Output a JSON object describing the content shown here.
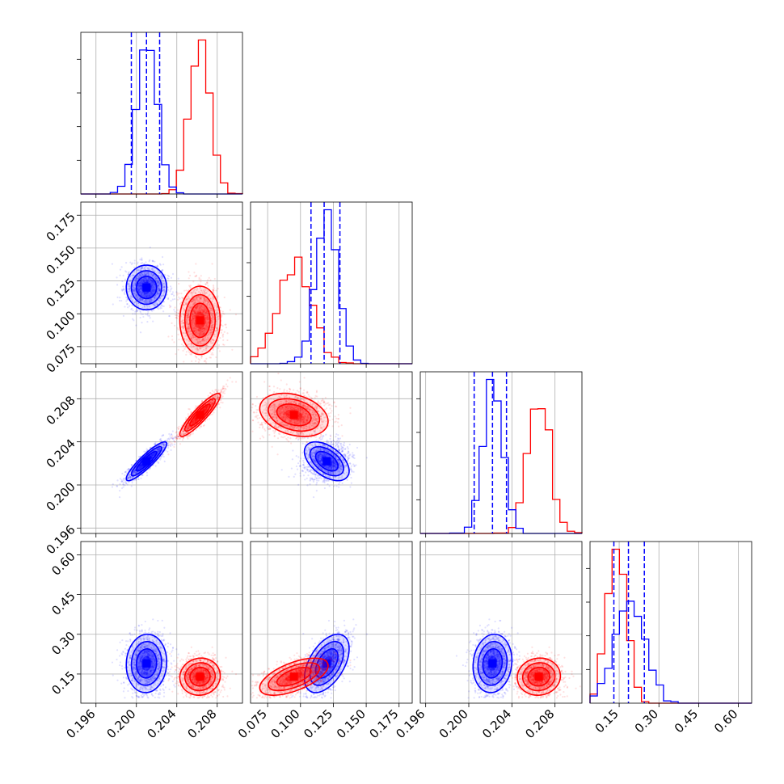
{
  "chart_data": {
    "type": "corner",
    "layout": "4x4 lower-triangular corner plot",
    "grid": true,
    "series": [
      {
        "name": "",
        "color": "#0000ff"
      },
      {
        "name": "",
        "color": "#ff0000"
      }
    ],
    "parameters": [
      {
        "range": [
          0.1945,
          0.2105
        ],
        "ticks": [
          0.196,
          0.2,
          0.204,
          0.208
        ],
        "tick_labels": [
          "0.196",
          "0.200",
          "0.204",
          "0.208"
        ]
      },
      {
        "range": [
          0.062,
          0.185
        ],
        "ticks": [
          0.075,
          0.1,
          0.125,
          0.15,
          0.175
        ],
        "tick_labels": [
          "0.075",
          "0.100",
          "0.125",
          "0.150",
          "0.175"
        ]
      },
      {
        "range": [
          0.1955,
          0.2105
        ],
        "ticks": [
          0.196,
          0.2,
          0.204,
          0.208
        ],
        "tick_labels": [
          "0.196",
          "0.200",
          "0.204",
          "0.208"
        ]
      },
      {
        "range": [
          0.04,
          0.65
        ],
        "ticks": [
          0.15,
          0.3,
          0.45,
          0.6
        ],
        "tick_labels": [
          "0.15",
          "0.30",
          "0.45",
          "0.60"
        ]
      }
    ],
    "blue": {
      "mean": [
        0.201,
        0.12,
        0.2022,
        0.19
      ],
      "std": [
        0.001,
        0.0085,
        0.0009,
        0.055
      ],
      "quantiles": [
        [
          0.1995,
          0.201,
          0.2023
        ],
        [
          0.108,
          0.118,
          0.13
        ],
        [
          0.2005,
          0.2022,
          0.2035
        ],
        [
          0.13,
          0.185,
          0.245
        ]
      ]
    },
    "red": {
      "mean": [
        0.2063,
        0.095,
        0.2065,
        0.14
      ],
      "std": [
        0.001,
        0.013,
        0.001,
        0.035
      ]
    }
  }
}
